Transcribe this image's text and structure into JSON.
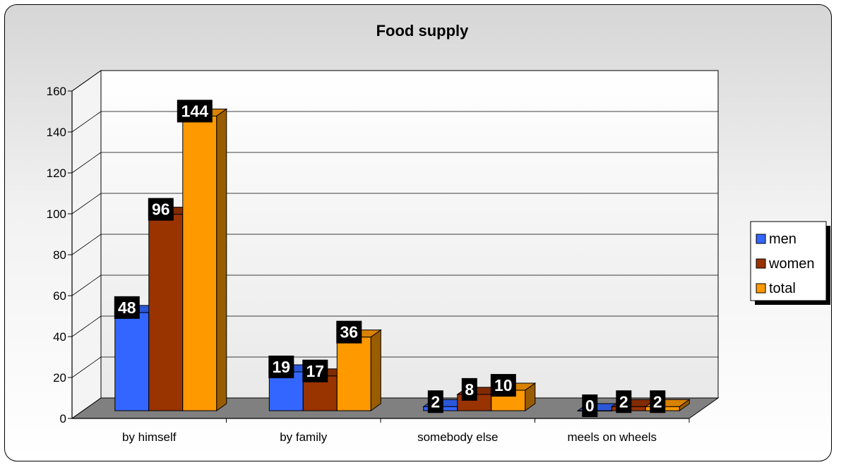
{
  "chart_data": {
    "type": "bar",
    "title": "Food supply",
    "categories": [
      "by himself",
      "by family",
      "somebody else",
      "meels on wheels"
    ],
    "series": [
      {
        "name": "men",
        "color": "#3366ff",
        "values": [
          48,
          19,
          2,
          0
        ]
      },
      {
        "name": "women",
        "color": "#993300",
        "values": [
          96,
          17,
          8,
          2
        ]
      },
      {
        "name": "total",
        "color": "#ff9900",
        "values": [
          144,
          36,
          10,
          2
        ]
      }
    ],
    "ylim": [
      0,
      160
    ],
    "yticks": [
      0,
      20,
      40,
      60,
      80,
      100,
      120,
      140,
      160
    ],
    "grid": true,
    "legend_position": "right",
    "style": "3d-clustered-column"
  }
}
